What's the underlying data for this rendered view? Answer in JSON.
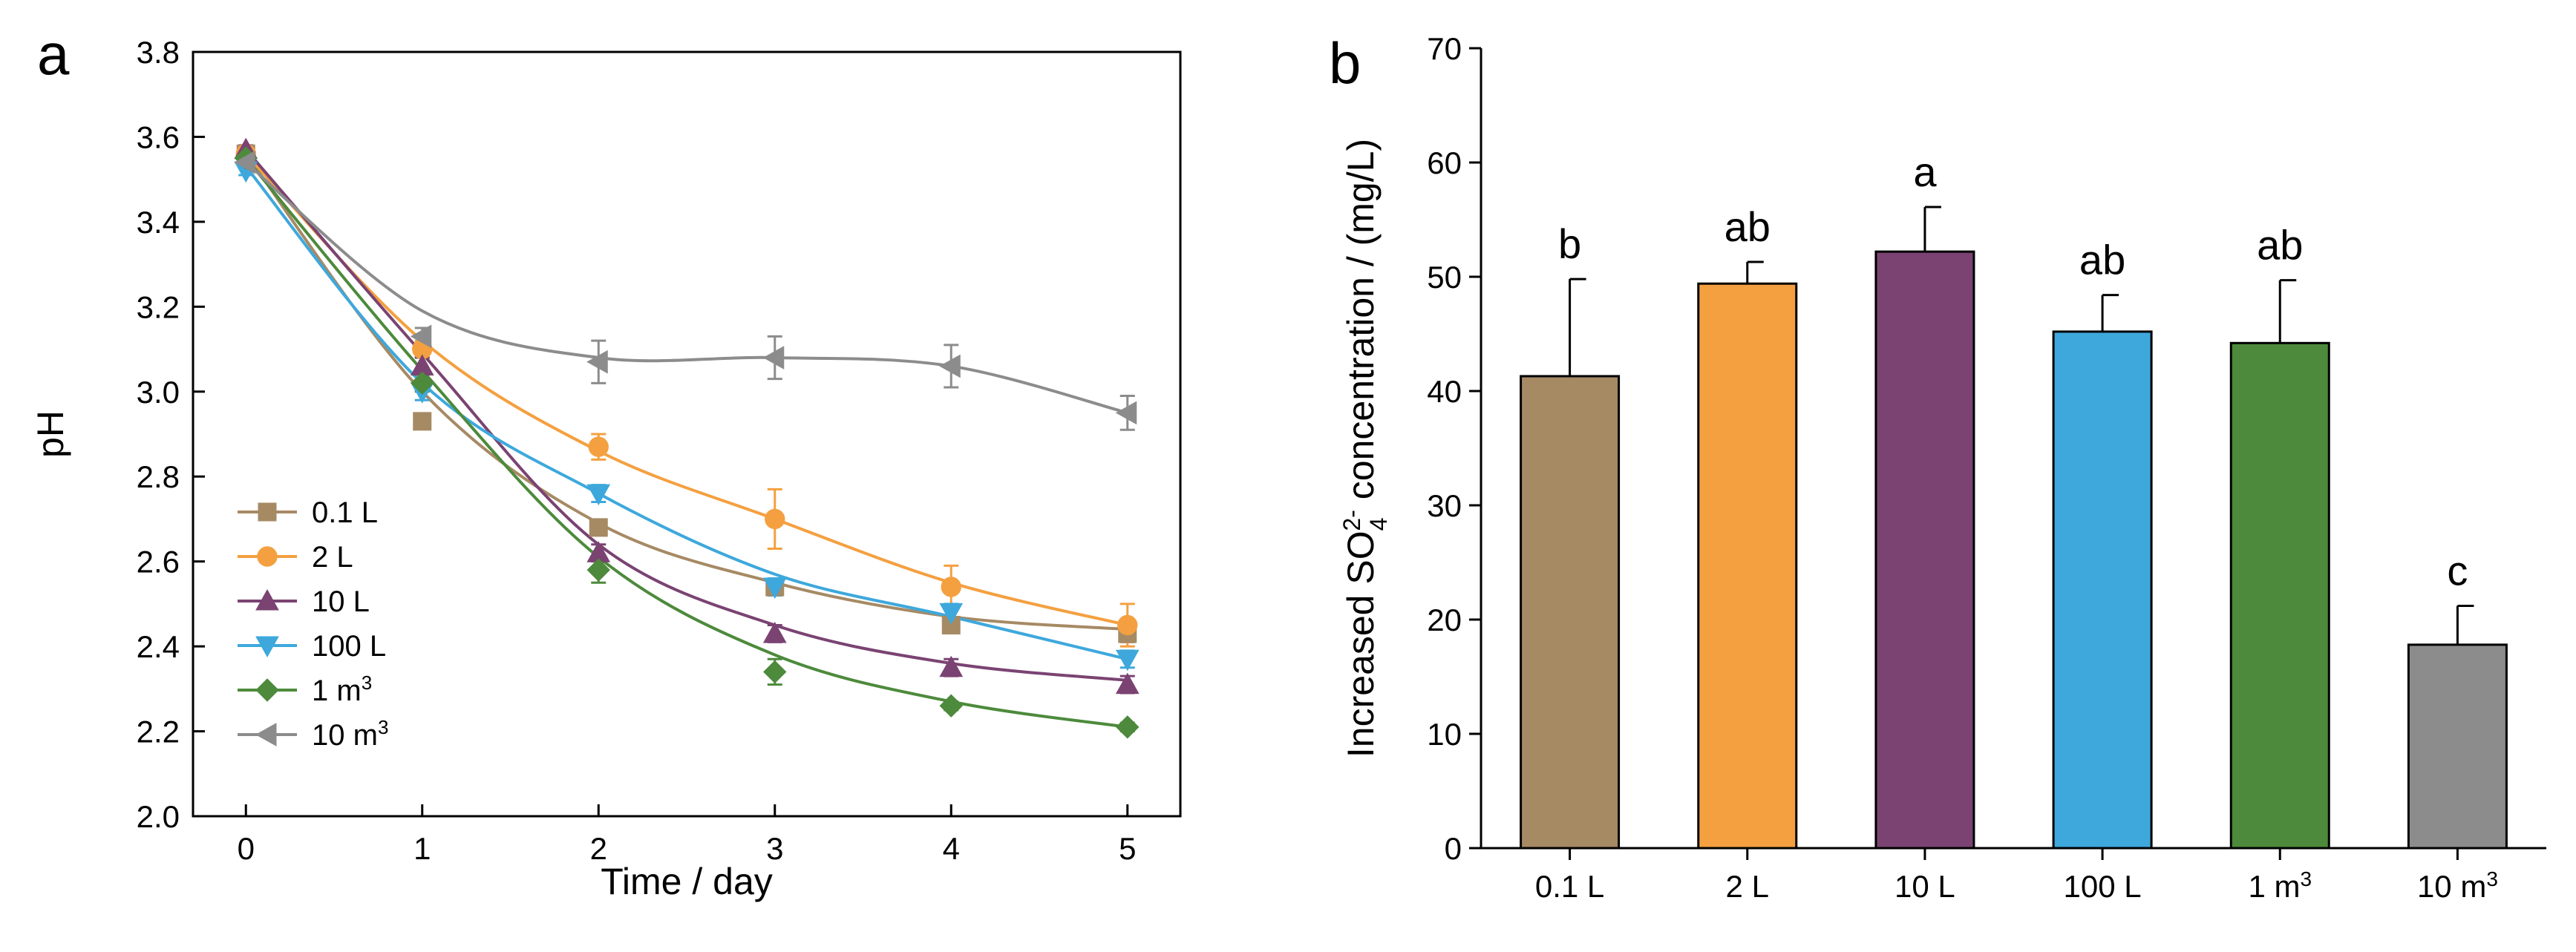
{
  "chart_data": [
    {
      "panel_label": "a",
      "type": "line",
      "xlabel": "Time / day",
      "ylabel": "pH",
      "xlim": [
        -0.3,
        5.3
      ],
      "ylim": [
        2.0,
        3.8
      ],
      "xticks": [
        0,
        1,
        2,
        3,
        4,
        5
      ],
      "yticks": [
        2.0,
        2.2,
        2.4,
        2.6,
        2.8,
        3.0,
        3.2,
        3.4,
        3.6,
        3.8
      ],
      "tick_labels_x": [
        "0",
        "1",
        "2",
        "3",
        "4",
        "5"
      ],
      "tick_labels_y": [
        "2.0",
        "2.2",
        "2.4",
        "2.6",
        "2.8",
        "3.0",
        "3.2",
        "3.4",
        "3.6",
        "3.8"
      ],
      "grid": false,
      "legend_position": "bottom-left",
      "x": [
        0,
        1,
        2,
        3,
        4,
        5
      ],
      "series": [
        {
          "name": "0.1 L",
          "label_main": "0.1 L",
          "label_sup": "",
          "color": "#a68a64",
          "marker": "square",
          "values": [
            3.56,
            2.93,
            2.68,
            2.54,
            2.45,
            2.43
          ],
          "errors": [
            0.01,
            0.01,
            0.01,
            0.02,
            0.01,
            0.02
          ],
          "fit": [
            3.56,
            3.0,
            2.69,
            2.55,
            2.47,
            2.44
          ]
        },
        {
          "name": "2 L",
          "label_main": "2 L",
          "label_sup": "",
          "color": "#f4a040",
          "marker": "circle",
          "values": [
            3.56,
            3.1,
            2.87,
            2.7,
            2.54,
            2.45
          ],
          "errors": [
            0.01,
            0.02,
            0.03,
            0.07,
            0.05,
            0.05
          ],
          "fit": [
            3.56,
            3.12,
            2.86,
            2.7,
            2.55,
            2.45
          ]
        },
        {
          "name": "10 L",
          "label_main": "10 L",
          "label_sup": "",
          "color": "#7a4372",
          "marker": "triangle-up",
          "values": [
            3.57,
            3.06,
            2.62,
            2.43,
            2.35,
            2.31
          ],
          "errors": [
            0.01,
            0.02,
            0.02,
            0.02,
            0.02,
            0.02
          ],
          "fit": [
            3.57,
            3.09,
            2.64,
            2.45,
            2.36,
            2.32
          ]
        },
        {
          "name": "100 L",
          "label_main": "100 L",
          "label_sup": "",
          "color": "#3ea8dc",
          "marker": "triangle-down",
          "values": [
            3.52,
            3.0,
            2.76,
            2.54,
            2.48,
            2.37
          ],
          "errors": [
            0.01,
            0.02,
            0.02,
            0.02,
            0.02,
            0.02
          ],
          "fit": [
            3.53,
            3.02,
            2.76,
            2.57,
            2.47,
            2.37
          ]
        },
        {
          "name": "1 m3",
          "label_main": "1 m",
          "label_sup": "3",
          "color": "#4d8a3c",
          "marker": "diamond",
          "values": [
            3.55,
            3.02,
            2.58,
            2.34,
            2.26,
            2.21
          ],
          "errors": [
            0.01,
            0.02,
            0.03,
            0.03,
            0.01,
            0.01
          ],
          "fit": [
            3.55,
            3.05,
            2.61,
            2.38,
            2.27,
            2.21
          ]
        },
        {
          "name": "10 m3",
          "label_main": "10 m",
          "label_sup": "3",
          "color": "#8c8c8c",
          "marker": "triangle-left",
          "values": [
            3.54,
            3.13,
            3.07,
            3.08,
            3.06,
            2.95
          ],
          "errors": [
            0.01,
            0.02,
            0.05,
            0.05,
            0.05,
            0.04
          ],
          "fit": [
            3.54,
            3.19,
            3.08,
            3.08,
            3.06,
            2.95
          ]
        }
      ]
    },
    {
      "panel_label": "b",
      "type": "bar",
      "ylabel_parts": {
        "main1": "Increased SO",
        "sub": "4",
        "sup": "2-",
        "main2": " concentration / (mg/L)"
      },
      "ylim": [
        0,
        70
      ],
      "yticks": [
        0,
        10,
        20,
        30,
        40,
        50,
        60,
        70
      ],
      "tick_labels_y": [
        "0",
        "10",
        "20",
        "30",
        "40",
        "50",
        "60",
        "70"
      ],
      "grid": false,
      "categories": [
        {
          "name": "0.1 L",
          "label_main": "0.1 L",
          "label_sup": ""
        },
        {
          "name": "2 L",
          "label_main": "2 L",
          "label_sup": ""
        },
        {
          "name": "10 L",
          "label_main": "10 L",
          "label_sup": ""
        },
        {
          "name": "100 L",
          "label_main": "100 L",
          "label_sup": ""
        },
        {
          "name": "1 m3",
          "label_main": "1 m",
          "label_sup": "3"
        },
        {
          "name": "10 m3",
          "label_main": "10 m",
          "label_sup": "3"
        }
      ],
      "values": [
        41.3,
        49.4,
        52.2,
        45.2,
        44.2,
        17.8
      ],
      "errors": [
        8.5,
        1.9,
        3.9,
        3.2,
        5.5,
        3.4
      ],
      "colors": [
        "#a68a64",
        "#f4a040",
        "#7a4372",
        "#3ea8dc",
        "#4d8a3c",
        "#8c8c8c"
      ],
      "annotations": [
        "b",
        "ab",
        "a",
        "ab",
        "ab",
        "c"
      ]
    }
  ]
}
